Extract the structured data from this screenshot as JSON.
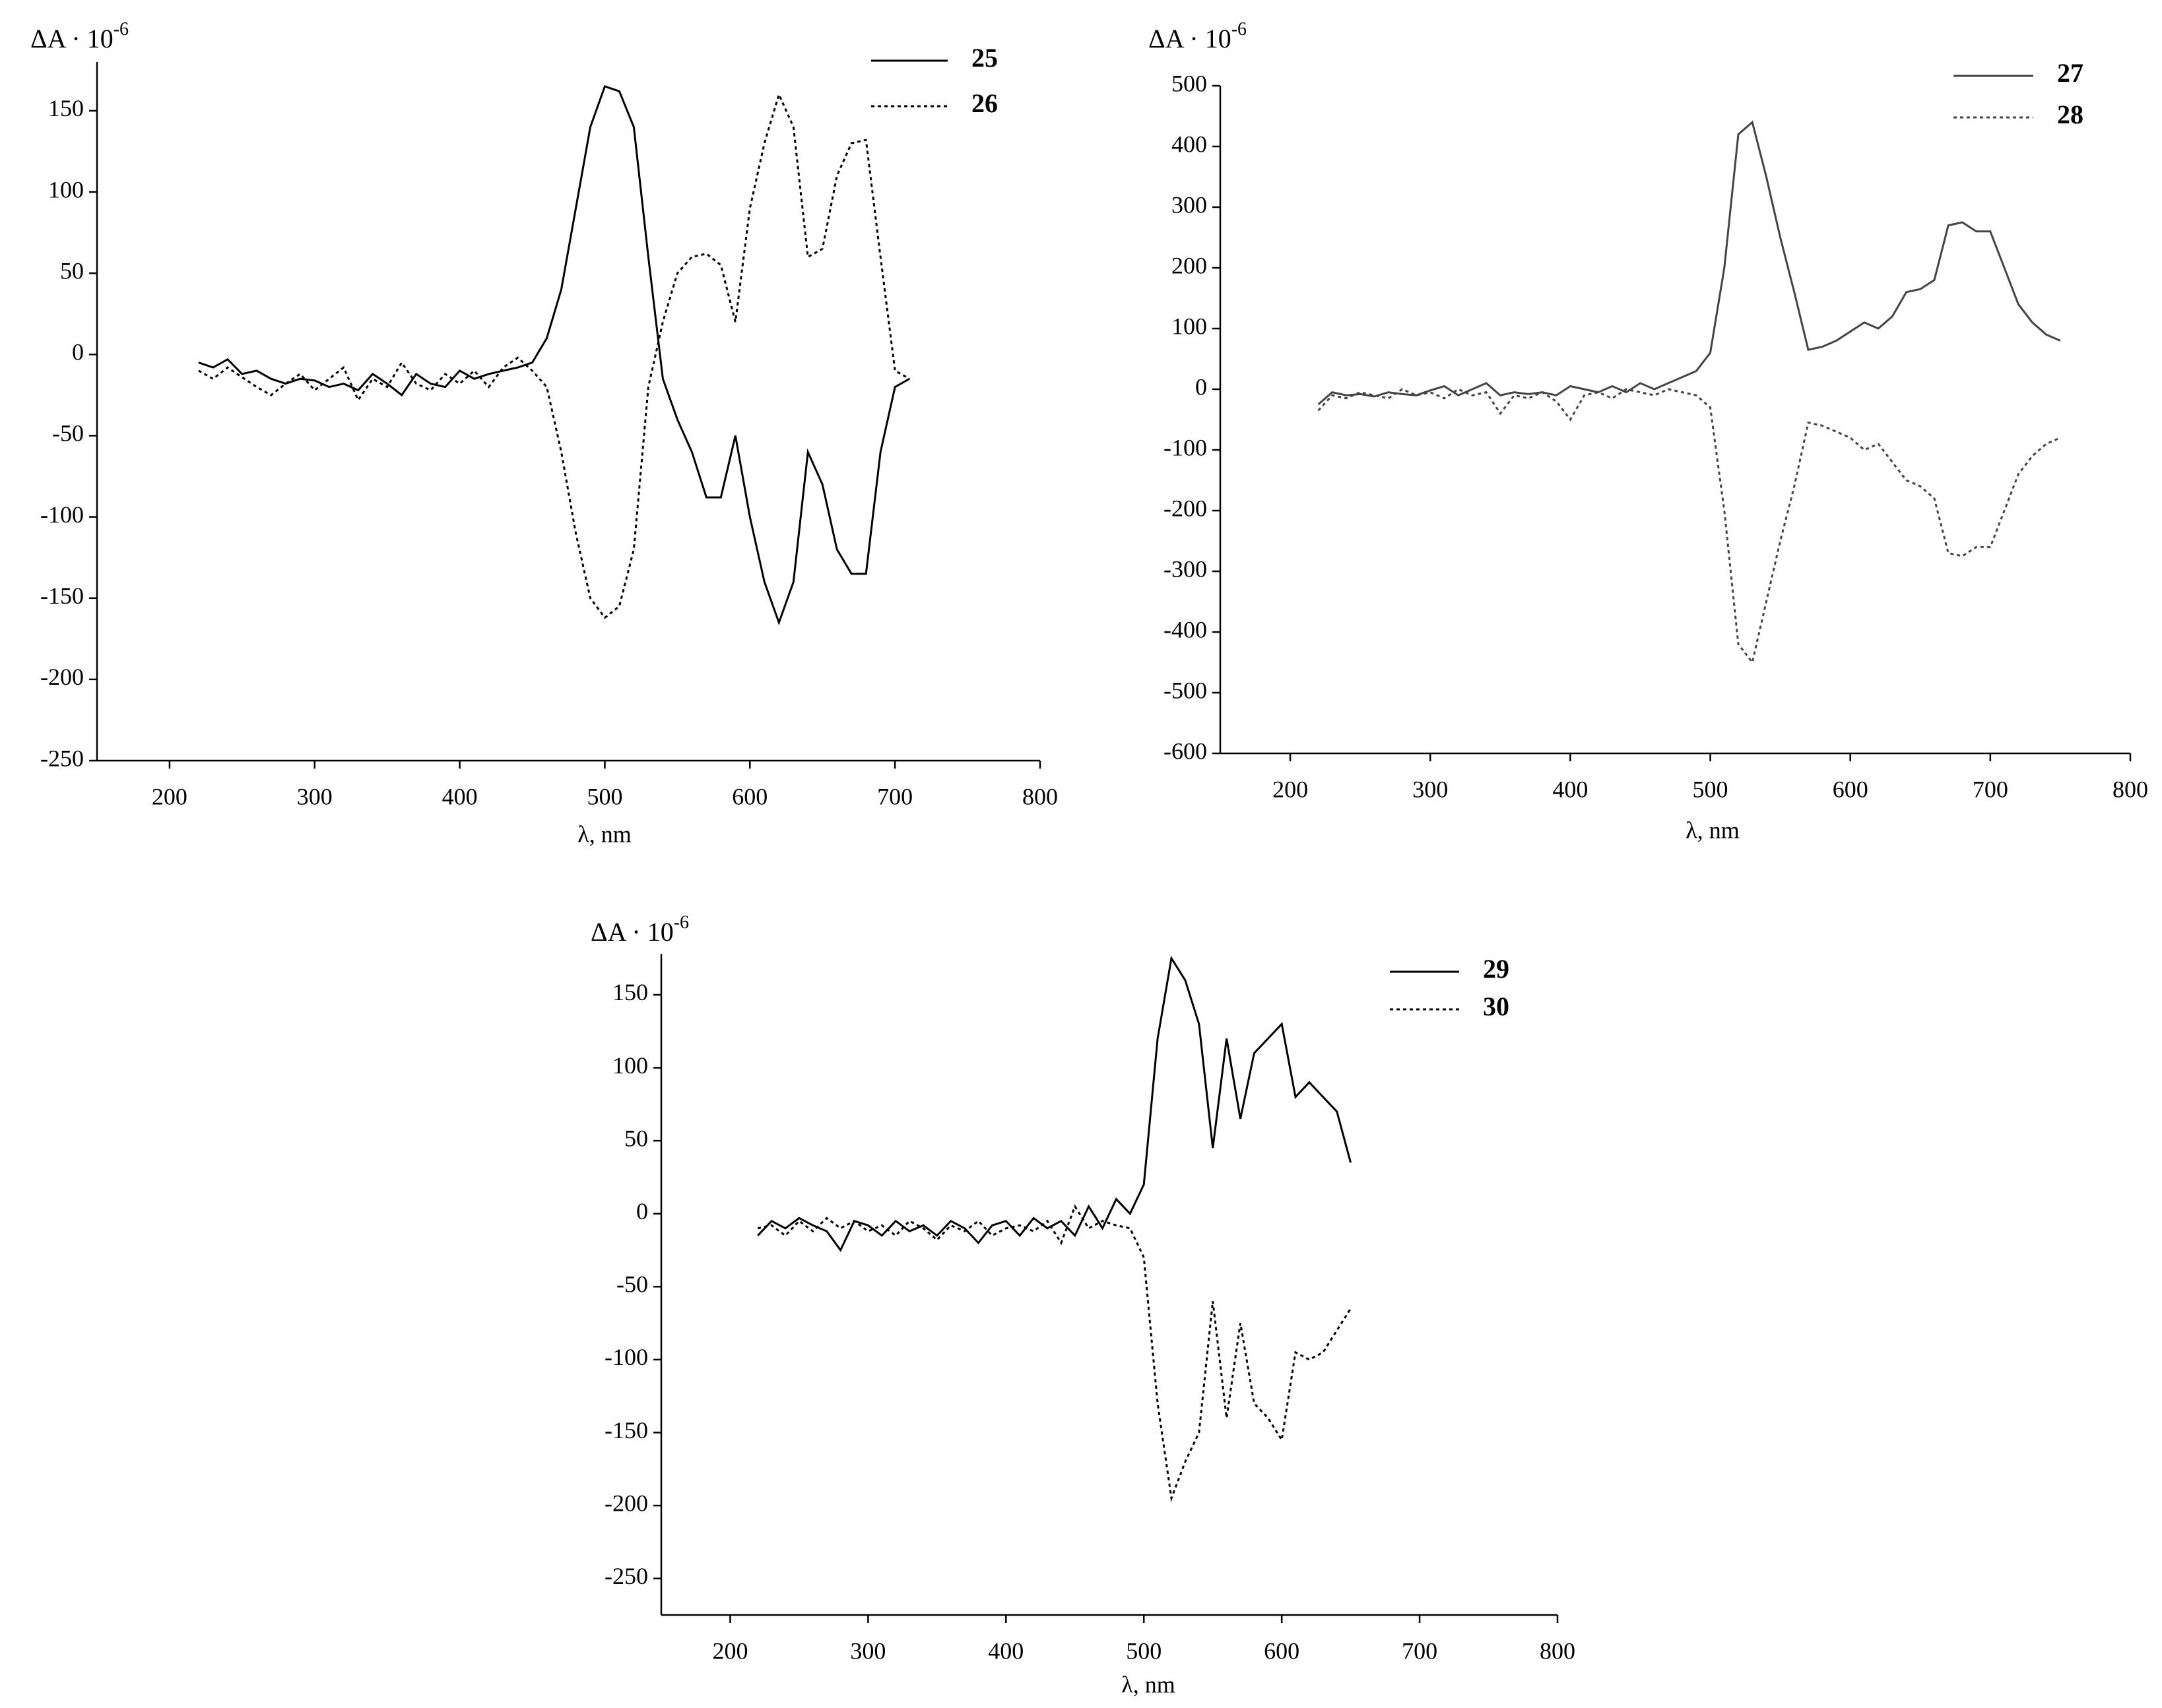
{
  "chart_data": [
    {
      "type": "line",
      "y_label": "ΔA · 10",
      "y_label_exponent": "-6",
      "x_label": "λ, nm",
      "xlim": [
        150,
        800
      ],
      "xticks": [
        200,
        300,
        400,
        500,
        600,
        700,
        800
      ],
      "ylim": [
        -250,
        180
      ],
      "yticks": [
        -250,
        -200,
        -150,
        -100,
        -50,
        0,
        50,
        100,
        150
      ],
      "x": [
        220,
        230,
        240,
        250,
        260,
        270,
        280,
        290,
        300,
        310,
        320,
        330,
        340,
        350,
        360,
        370,
        380,
        390,
        400,
        410,
        420,
        430,
        440,
        450,
        460,
        470,
        480,
        490,
        500,
        510,
        520,
        530,
        540,
        550,
        560,
        570,
        580,
        590,
        600,
        610,
        620,
        630,
        640,
        650,
        660,
        670,
        680,
        690,
        700,
        710
      ],
      "series": [
        {
          "name": "25",
          "color": "#000000",
          "dash": "solid",
          "values": [
            -5,
            -8,
            -3,
            -12,
            -10,
            -15,
            -18,
            -15,
            -16,
            -20,
            -18,
            -22,
            -12,
            -18,
            -25,
            -12,
            -18,
            -20,
            -10,
            -15,
            -12,
            -10,
            -8,
            -5,
            10,
            40,
            90,
            140,
            165,
            162,
            140,
            60,
            -15,
            -40,
            -60,
            -88,
            -88,
            -50,
            -100,
            -140,
            -165,
            -140,
            -60,
            -80,
            -120,
            -135,
            -135,
            -60,
            -20,
            -15
          ]
        },
        {
          "name": "26",
          "color": "#000000",
          "dash": "dotted",
          "values": [
            -10,
            -15,
            -8,
            -14,
            -20,
            -25,
            -18,
            -12,
            -22,
            -15,
            -8,
            -28,
            -15,
            -20,
            -5,
            -18,
            -22,
            -12,
            -18,
            -10,
            -20,
            -8,
            -2,
            -10,
            -20,
            -60,
            -110,
            -150,
            -162,
            -155,
            -120,
            -20,
            20,
            50,
            60,
            62,
            55,
            20,
            90,
            130,
            160,
            140,
            60,
            65,
            110,
            130,
            132,
            60,
            -10,
            -15
          ]
        }
      ]
    },
    {
      "type": "line",
      "y_label": "ΔA · 10",
      "y_label_exponent": "-6",
      "x_label": "λ, nm",
      "xlim": [
        150,
        800
      ],
      "xticks": [
        200,
        300,
        400,
        500,
        600,
        700,
        800
      ],
      "ylim": [
        -600,
        500
      ],
      "yticks": [
        -600,
        -500,
        -400,
        -300,
        -200,
        -100,
        0,
        100,
        200,
        300,
        400,
        500
      ],
      "x": [
        220,
        230,
        240,
        250,
        260,
        270,
        280,
        290,
        300,
        310,
        320,
        330,
        340,
        350,
        360,
        370,
        380,
        390,
        400,
        410,
        420,
        430,
        440,
        450,
        460,
        470,
        480,
        490,
        500,
        510,
        520,
        530,
        540,
        550,
        560,
        570,
        580,
        590,
        600,
        610,
        620,
        630,
        640,
        650,
        660,
        670,
        680,
        690,
        700,
        710,
        720,
        730,
        740,
        750
      ],
      "series": [
        {
          "name": "27",
          "color": "#444444",
          "dash": "solid",
          "values": [
            -25,
            -5,
            -10,
            -8,
            -12,
            -5,
            -8,
            -10,
            -2,
            5,
            -10,
            0,
            10,
            -10,
            -5,
            -8,
            -5,
            -10,
            5,
            0,
            -5,
            5,
            -5,
            10,
            0,
            10,
            20,
            30,
            60,
            200,
            420,
            440,
            350,
            250,
            160,
            65,
            70,
            80,
            95,
            110,
            100,
            120,
            160,
            165,
            180,
            270,
            275,
            260,
            260,
            200,
            140,
            110,
            90,
            80
          ]
        },
        {
          "name": "28",
          "color": "#444444",
          "dash": "dotted",
          "values": [
            -35,
            -10,
            -15,
            -5,
            -10,
            -15,
            0,
            -10,
            -5,
            -15,
            0,
            -10,
            -5,
            -40,
            -10,
            -15,
            -5,
            -20,
            -50,
            -10,
            -5,
            -15,
            0,
            -5,
            -10,
            0,
            -5,
            -10,
            -30,
            -200,
            -420,
            -450,
            -350,
            -250,
            -160,
            -55,
            -60,
            -70,
            -80,
            -100,
            -90,
            -120,
            -150,
            -160,
            -180,
            -270,
            -275,
            -260,
            -260,
            -200,
            -140,
            -110,
            -90,
            -80
          ]
        }
      ]
    },
    {
      "type": "line",
      "y_label": "ΔA · 10",
      "y_label_exponent": "-6",
      "x_label": "λ, nm",
      "xlim": [
        150,
        800
      ],
      "xticks": [
        200,
        300,
        400,
        500,
        600,
        700,
        800
      ],
      "ylim": [
        -275,
        178
      ],
      "yticks": [
        -250,
        -200,
        -150,
        -100,
        -50,
        0,
        50,
        100,
        150
      ],
      "x": [
        220,
        230,
        240,
        250,
        260,
        270,
        280,
        290,
        300,
        310,
        320,
        330,
        340,
        350,
        360,
        370,
        380,
        390,
        400,
        410,
        420,
        430,
        440,
        450,
        460,
        470,
        480,
        490,
        500,
        510,
        520,
        530,
        540,
        550,
        560,
        570,
        580,
        590,
        600,
        610,
        620,
        630,
        640,
        650
      ],
      "series": [
        {
          "name": "29",
          "color": "#000000",
          "dash": "solid",
          "values": [
            -15,
            -5,
            -10,
            -3,
            -8,
            -12,
            -25,
            -5,
            -8,
            -15,
            -5,
            -12,
            -8,
            -15,
            -5,
            -10,
            -20,
            -8,
            -5,
            -15,
            -3,
            -10,
            -5,
            -15,
            5,
            -10,
            10,
            0,
            20,
            120,
            175,
            160,
            130,
            45,
            120,
            65,
            110,
            120,
            130,
            80,
            90,
            80,
            70,
            35
          ]
        },
        {
          "name": "30",
          "color": "#000000",
          "dash": "dotted",
          "values": [
            -10,
            -8,
            -15,
            -5,
            -12,
            -3,
            -10,
            -5,
            -12,
            -8,
            -15,
            -5,
            -10,
            -18,
            -8,
            -12,
            -5,
            -15,
            -10,
            -8,
            -12,
            -5,
            -20,
            5,
            -10,
            -5,
            -8,
            -10,
            -30,
            -130,
            -195,
            -170,
            -150,
            -60,
            -140,
            -75,
            -130,
            -140,
            -155,
            -95,
            -100,
            -95,
            -80,
            -65
          ]
        }
      ]
    }
  ]
}
